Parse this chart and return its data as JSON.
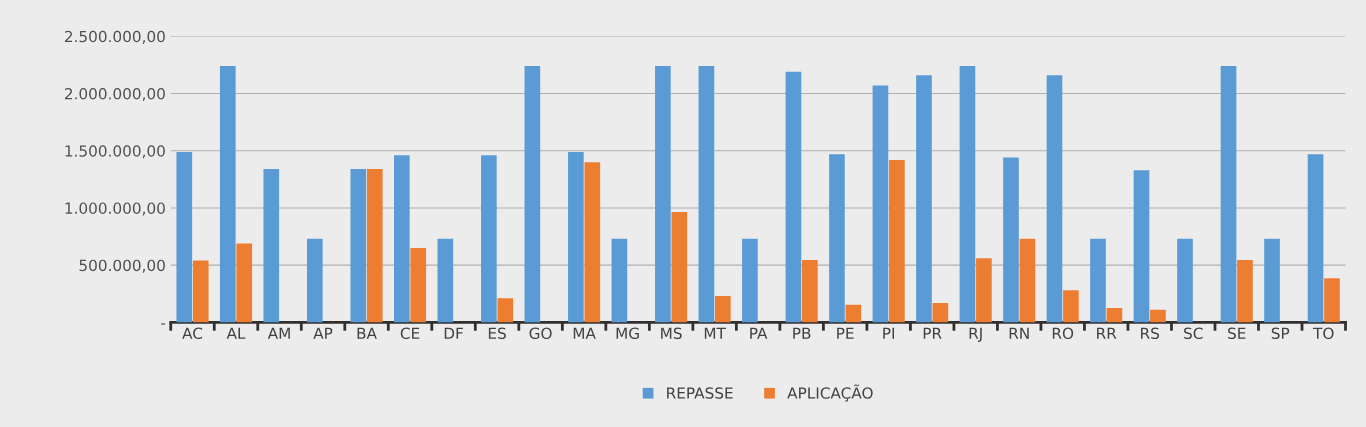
{
  "chart_data": {
    "type": "bar",
    "categories": [
      "AC",
      "AL",
      "AM",
      "AP",
      "BA",
      "CE",
      "DF",
      "ES",
      "GO",
      "MA",
      "MG",
      "MS",
      "MT",
      "PA",
      "PB",
      "PE",
      "PI",
      "PR",
      "RJ",
      "RN",
      "RO",
      "RR",
      "RS",
      "SC",
      "SE",
      "SP",
      "TO"
    ],
    "series": [
      {
        "name": "REPASSE",
        "color": "#5b9bd5",
        "values": [
          1490000,
          2240000,
          1340000,
          730000,
          1340000,
          1460000,
          730000,
          1460000,
          2240000,
          1490000,
          730000,
          2240000,
          2240000,
          730000,
          2190000,
          1470000,
          2070000,
          2160000,
          2240000,
          1440000,
          2160000,
          730000,
          1330000,
          730000,
          2240000,
          730000,
          1470000
        ]
      },
      {
        "name": "APLICAÇÃO",
        "color": "#ed7d31",
        "values": [
          540000,
          690000,
          0,
          0,
          1340000,
          650000,
          0,
          210000,
          0,
          1400000,
          0,
          965000,
          230000,
          0,
          545000,
          155000,
          1420000,
          170000,
          560000,
          730000,
          280000,
          125000,
          110000,
          0,
          545000,
          0,
          385000
        ]
      }
    ],
    "ylim": [
      0,
      2500000
    ],
    "yticks": [
      {
        "value": 0,
        "label": "-"
      },
      {
        "value": 500000,
        "label": "500.000,00"
      },
      {
        "value": 1000000,
        "label": "1.000.000,00"
      },
      {
        "value": 1500000,
        "label": "1.500.000,00"
      },
      {
        "value": 2000000,
        "label": "2.000.000,00"
      },
      {
        "value": 2500000,
        "label": "2.500.000,00"
      }
    ],
    "grid": "y",
    "legend": "bottom"
  }
}
